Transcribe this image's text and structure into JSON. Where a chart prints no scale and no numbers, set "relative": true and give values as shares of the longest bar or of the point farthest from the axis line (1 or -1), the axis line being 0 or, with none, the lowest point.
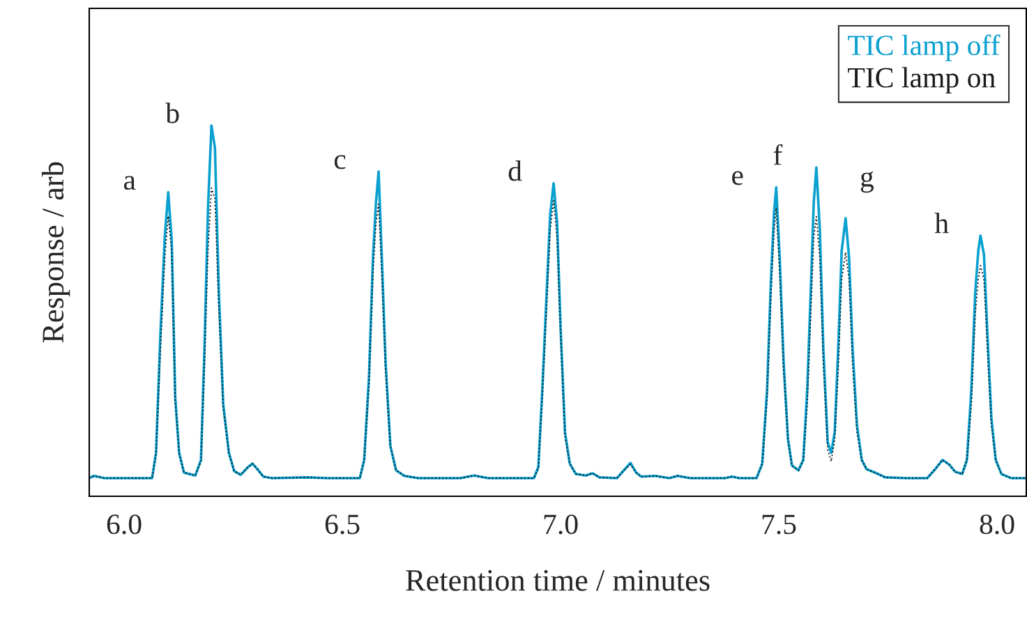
{
  "chart_data": {
    "type": "line",
    "relative": true,
    "xlabel": "Retention time / minutes",
    "ylabel": "Response / arb",
    "xlim": [
      5.92,
      8.067
    ],
    "xticks": [
      {
        "value": 6,
        "label": "6.0"
      },
      {
        "value": 6.5,
        "label": "6.5"
      },
      {
        "value": 7,
        "label": "7.0"
      },
      {
        "value": 7.5,
        "label": "7.5"
      },
      {
        "value": 8,
        "label": "8.0"
      }
    ],
    "legend": "top right",
    "grid": false,
    "tick_labels": "x",
    "series": [
      {
        "name": "TIC lamp off",
        "color": "#0aa0cf",
        "line_style": "solid",
        "x": [
          5.92,
          5.931,
          5.955,
          6.064,
          6.073,
          6.083,
          6.093,
          6.101,
          6.109,
          6.117,
          6.126,
          6.137,
          6.163,
          6.176,
          6.184,
          6.192,
          6.2,
          6.208,
          6.217,
          6.227,
          6.24,
          6.252,
          6.267,
          6.284,
          6.294,
          6.304,
          6.319,
          6.339,
          6.419,
          6.466,
          6.54,
          6.55,
          6.561,
          6.57,
          6.577,
          6.583,
          6.591,
          6.599,
          6.61,
          6.623,
          6.642,
          6.674,
          6.77,
          6.802,
          6.834,
          6.939,
          6.949,
          6.958,
          6.968,
          6.976,
          6.984,
          6.992,
          7.0,
          7.01,
          7.021,
          7.035,
          7.058,
          7.073,
          7.089,
          7.129,
          7.145,
          7.16,
          7.173,
          7.185,
          7.217,
          7.249,
          7.268,
          7.297,
          7.377,
          7.393,
          7.409,
          7.449,
          7.462,
          7.473,
          7.482,
          7.489,
          7.494,
          7.502,
          7.511,
          7.521,
          7.53,
          7.545,
          7.556,
          7.565,
          7.573,
          7.58,
          7.586,
          7.594,
          7.602,
          7.612,
          7.62,
          7.628,
          7.636,
          7.644,
          7.653,
          7.661,
          7.669,
          7.679,
          7.69,
          7.701,
          7.72,
          7.744,
          7.792,
          7.84,
          7.856,
          7.875,
          7.891,
          7.904,
          7.92,
          7.931,
          7.941,
          7.95,
          7.957,
          7.962,
          7.97,
          7.978,
          7.987,
          7.997,
          8.01,
          8.032,
          8.067
        ],
        "values": [
          0.049,
          0.055,
          0.049,
          0.049,
          0.117,
          0.436,
          0.699,
          0.82,
          0.69,
          0.267,
          0.117,
          0.064,
          0.056,
          0.098,
          0.398,
          0.774,
          1.0,
          0.94,
          0.549,
          0.248,
          0.117,
          0.068,
          0.058,
          0.079,
          0.088,
          0.075,
          0.053,
          0.049,
          0.051,
          0.049,
          0.049,
          0.098,
          0.323,
          0.643,
          0.793,
          0.876,
          0.624,
          0.361,
          0.135,
          0.07,
          0.055,
          0.049,
          0.049,
          0.056,
          0.049,
          0.049,
          0.079,
          0.286,
          0.549,
          0.758,
          0.844,
          0.737,
          0.455,
          0.173,
          0.088,
          0.06,
          0.056,
          0.062,
          0.051,
          0.049,
          0.07,
          0.09,
          0.064,
          0.053,
          0.055,
          0.049,
          0.055,
          0.049,
          0.049,
          0.053,
          0.049,
          0.049,
          0.088,
          0.286,
          0.586,
          0.765,
          0.833,
          0.643,
          0.361,
          0.154,
          0.083,
          0.07,
          0.098,
          0.286,
          0.549,
          0.793,
          0.887,
          0.718,
          0.398,
          0.145,
          0.117,
          0.173,
          0.398,
          0.662,
          0.75,
          0.643,
          0.398,
          0.192,
          0.098,
          0.073,
          0.064,
          0.051,
          0.049,
          0.049,
          0.07,
          0.098,
          0.085,
          0.066,
          0.06,
          0.098,
          0.286,
          0.549,
          0.662,
          0.703,
          0.652,
          0.436,
          0.211,
          0.098,
          0.06,
          0.049,
          0.049
        ]
      },
      {
        "name": "TIC lamp on",
        "color": "#1a1a1a",
        "line_style": "dotted",
        "x": [
          5.92,
          5.931,
          5.955,
          6.064,
          6.073,
          6.083,
          6.093,
          6.101,
          6.109,
          6.117,
          6.126,
          6.137,
          6.163,
          6.176,
          6.184,
          6.192,
          6.2,
          6.208,
          6.217,
          6.227,
          6.24,
          6.252,
          6.267,
          6.284,
          6.294,
          6.304,
          6.319,
          6.339,
          6.419,
          6.466,
          6.54,
          6.55,
          6.561,
          6.57,
          6.577,
          6.583,
          6.591,
          6.599,
          6.61,
          6.623,
          6.642,
          6.674,
          6.77,
          6.802,
          6.834,
          6.939,
          6.949,
          6.958,
          6.968,
          6.976,
          6.984,
          6.992,
          7.0,
          7.01,
          7.021,
          7.035,
          7.058,
          7.073,
          7.089,
          7.129,
          7.145,
          7.16,
          7.173,
          7.185,
          7.217,
          7.249,
          7.268,
          7.297,
          7.377,
          7.393,
          7.409,
          7.449,
          7.462,
          7.473,
          7.482,
          7.489,
          7.494,
          7.502,
          7.511,
          7.521,
          7.53,
          7.545,
          7.556,
          7.565,
          7.573,
          7.58,
          7.586,
          7.594,
          7.602,
          7.612,
          7.62,
          7.628,
          7.636,
          7.644,
          7.653,
          7.661,
          7.669,
          7.679,
          7.69,
          7.701,
          7.72,
          7.744,
          7.792,
          7.84,
          7.856,
          7.875,
          7.891,
          7.904,
          7.92,
          7.931,
          7.941,
          7.95,
          7.957,
          7.962,
          7.97,
          7.978,
          7.987,
          7.997,
          8.01,
          8.032,
          8.067
        ],
        "values": [
          0.049,
          0.055,
          0.049,
          0.049,
          0.113,
          0.398,
          0.643,
          0.756,
          0.662,
          0.258,
          0.117,
          0.064,
          0.056,
          0.094,
          0.361,
          0.662,
          0.831,
          0.803,
          0.511,
          0.239,
          0.117,
          0.068,
          0.058,
          0.079,
          0.088,
          0.075,
          0.053,
          0.049,
          0.051,
          0.049,
          0.049,
          0.098,
          0.305,
          0.605,
          0.737,
          0.788,
          0.586,
          0.342,
          0.135,
          0.07,
          0.055,
          0.049,
          0.049,
          0.056,
          0.049,
          0.049,
          0.075,
          0.267,
          0.511,
          0.718,
          0.797,
          0.699,
          0.436,
          0.164,
          0.088,
          0.06,
          0.056,
          0.062,
          0.051,
          0.049,
          0.07,
          0.086,
          0.064,
          0.053,
          0.055,
          0.049,
          0.055,
          0.049,
          0.049,
          0.053,
          0.049,
          0.049,
          0.088,
          0.267,
          0.549,
          0.718,
          0.778,
          0.605,
          0.342,
          0.15,
          0.083,
          0.07,
          0.098,
          0.248,
          0.492,
          0.699,
          0.754,
          0.643,
          0.361,
          0.126,
          0.094,
          0.154,
          0.342,
          0.586,
          0.658,
          0.586,
          0.361,
          0.173,
          0.098,
          0.073,
          0.064,
          0.051,
          0.049,
          0.049,
          0.07,
          0.098,
          0.085,
          0.066,
          0.06,
          0.098,
          0.248,
          0.492,
          0.586,
          0.622,
          0.586,
          0.398,
          0.192,
          0.098,
          0.06,
          0.049,
          0.049
        ]
      }
    ],
    "annotations": [
      {
        "text": "a",
        "x": 6.101,
        "y": 0.82
      },
      {
        "text": "b",
        "x": 6.2,
        "y": 1.0
      },
      {
        "text": "c",
        "x": 6.583,
        "y": 0.876
      },
      {
        "text": "d",
        "x": 6.984,
        "y": 0.844
      },
      {
        "text": "e",
        "x": 7.494,
        "y": 0.833
      },
      {
        "text": "f",
        "x": 7.586,
        "y": 0.887
      },
      {
        "text": "g",
        "x": 7.653,
        "y": 0.75
      },
      {
        "text": "h",
        "x": 7.962,
        "y": 0.703
      }
    ]
  }
}
